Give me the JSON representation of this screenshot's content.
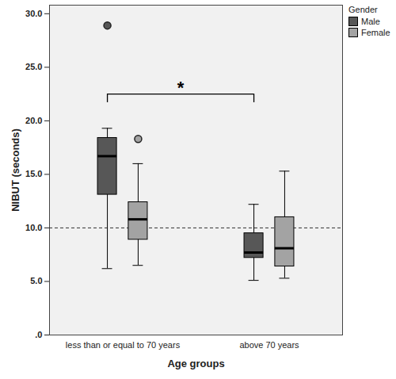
{
  "chart_data": {
    "type": "box",
    "xlabel": "Age groups",
    "ylabel": "NIBUT (seconds)",
    "categories": [
      "less than or equal to 70 years",
      "above 70 years"
    ],
    "legend_title": "Gender",
    "legend": "right",
    "ylim": [
      0,
      30.8
    ],
    "yticks": [
      {
        "value": 0,
        "label": ".0"
      },
      {
        "value": 5,
        "label": "5.0"
      },
      {
        "value": 10,
        "label": "10.0"
      },
      {
        "value": 15,
        "label": "15.0"
      },
      {
        "value": 20,
        "label": "20.0"
      },
      {
        "value": 25,
        "label": "25.0"
      },
      {
        "value": 30,
        "label": "30.0"
      }
    ],
    "reference_line": 10,
    "series": [
      {
        "name": "Male",
        "color": "#575757",
        "boxes": [
          {
            "whisker_low": 6.2,
            "q1": 13.1,
            "median": 16.7,
            "q3": 18.4,
            "whisker_high": 19.3,
            "outliers": [
              28.9
            ]
          },
          {
            "whisker_low": 5.1,
            "q1": 7.2,
            "median": 7.7,
            "q3": 9.5,
            "whisker_high": 12.2,
            "outliers": []
          }
        ]
      },
      {
        "name": "Female",
        "color": "#a3a3a3",
        "boxes": [
          {
            "whisker_low": 6.5,
            "q1": 8.9,
            "median": 10.8,
            "q3": 12.4,
            "whisker_high": 16.0,
            "outliers": [
              18.3
            ]
          },
          {
            "whisker_low": 5.3,
            "q1": 6.4,
            "median": 8.1,
            "q3": 11.0,
            "whisker_high": 15.3,
            "outliers": []
          }
        ]
      }
    ],
    "annotation": {
      "text": "*",
      "series": "Male",
      "between": [
        "less than or equal to 70 years",
        "above 70 years"
      ]
    }
  }
}
